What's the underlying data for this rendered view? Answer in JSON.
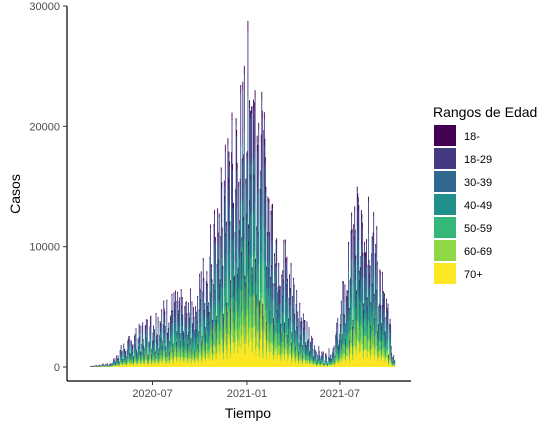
{
  "chart_data": {
    "type": "bar",
    "subtype": "stacked-daily",
    "xlabel": "Tiempo",
    "ylabel": "Casos",
    "x_range": [
      "2020-03-01",
      "2021-10-15"
    ],
    "ylim": [
      0,
      30000
    ],
    "x_ticks": [
      {
        "date": "2020-07-01",
        "label": "2020-07"
      },
      {
        "date": "2021-01-01",
        "label": "2021-01"
      },
      {
        "date": "2021-07-01",
        "label": "2021-07"
      }
    ],
    "y_ticks": [
      {
        "value": 0,
        "label": "0"
      },
      {
        "value": 10000,
        "label": "10000"
      },
      {
        "value": 20000,
        "label": "20000"
      },
      {
        "value": 30000,
        "label": "30000"
      }
    ],
    "grid": false,
    "legend": {
      "title": "Rangos de Edad",
      "position": "right",
      "entries": [
        {
          "label": "18-",
          "color": "#440154"
        },
        {
          "label": "18-29",
          "color": "#443A83"
        },
        {
          "label": "30-39",
          "color": "#31688E"
        },
        {
          "label": "40-49",
          "color": "#21908C"
        },
        {
          "label": "50-59",
          "color": "#35B779"
        },
        {
          "label": "60-69",
          "color": "#8FD744"
        },
        {
          "label": "70+",
          "color": "#FDE725"
        }
      ]
    },
    "series_shares": {
      "18-": 0.03,
      "18-29": 0.19,
      "30-39": 0.19,
      "40-49": 0.17,
      "50-59": 0.15,
      "60-69": 0.12,
      "70+": 0.15
    },
    "daily_totals_envelope": [
      {
        "date": "2020-03-05",
        "value": 100
      },
      {
        "date": "2020-04-10",
        "value": 300
      },
      {
        "date": "2020-05-01",
        "value": 1500
      },
      {
        "date": "2020-05-20",
        "value": 2200
      },
      {
        "date": "2020-06-15",
        "value": 3200
      },
      {
        "date": "2020-07-15",
        "value": 4200
      },
      {
        "date": "2020-08-15",
        "value": 5200
      },
      {
        "date": "2020-09-05",
        "value": 4800
      },
      {
        "date": "2020-09-25",
        "value": 5500
      },
      {
        "date": "2020-10-20",
        "value": 9500
      },
      {
        "date": "2020-11-10",
        "value": 13000
      },
      {
        "date": "2020-12-01",
        "value": 16500
      },
      {
        "date": "2020-12-20",
        "value": 19000
      },
      {
        "date": "2021-01-08",
        "value": 24000
      },
      {
        "date": "2021-01-20",
        "value": 21000
      },
      {
        "date": "2021-02-10",
        "value": 14000
      },
      {
        "date": "2021-03-10",
        "value": 9500
      },
      {
        "date": "2021-04-05",
        "value": 6000
      },
      {
        "date": "2021-04-25",
        "value": 3200
      },
      {
        "date": "2021-05-15",
        "value": 1500
      },
      {
        "date": "2021-06-05",
        "value": 900
      },
      {
        "date": "2021-06-20",
        "value": 2000
      },
      {
        "date": "2021-07-10",
        "value": 6500
      },
      {
        "date": "2021-07-25",
        "value": 10500
      },
      {
        "date": "2021-08-10",
        "value": 14500
      },
      {
        "date": "2021-08-22",
        "value": 14000
      },
      {
        "date": "2021-09-10",
        "value": 9500
      },
      {
        "date": "2021-09-25",
        "value": 5500
      },
      {
        "date": "2021-10-05",
        "value": 3500
      },
      {
        "date": "2021-10-12",
        "value": 800
      }
    ]
  }
}
